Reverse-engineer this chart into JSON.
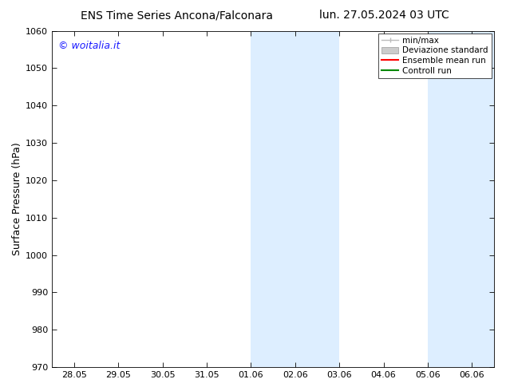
{
  "title_left": "ENS Time Series Ancona/Falconara",
  "title_right": "lun. 27.05.2024 03 UTC",
  "ylabel": "Surface Pressure (hPa)",
  "ylim": [
    970,
    1060
  ],
  "yticks": [
    970,
    980,
    990,
    1000,
    1010,
    1020,
    1030,
    1040,
    1050,
    1060
  ],
  "xtick_labels": [
    "28.05",
    "29.05",
    "30.05",
    "31.05",
    "01.06",
    "02.06",
    "03.06",
    "04.06",
    "05.06",
    "06.06"
  ],
  "watermark": "© woitalia.it",
  "watermark_color": "#1a1aff",
  "bg_color": "#ffffff",
  "plot_bg_color": "#ffffff",
  "shade_regions": [
    {
      "xstart": 4.0,
      "xend": 6.0
    },
    {
      "xstart": 8.0,
      "xend": 10.0
    }
  ],
  "shade_color": "#ddeeff",
  "legend_items": [
    {
      "label": "min/max",
      "color": "#bbbbbb",
      "lw": 1.0,
      "style": "minmax"
    },
    {
      "label": "Deviazione standard",
      "color": "#cccccc",
      "lw": 5,
      "style": "band"
    },
    {
      "label": "Ensemble mean run",
      "color": "#ff0000",
      "lw": 1.5,
      "style": "line"
    },
    {
      "label": "Controll run",
      "color": "#008800",
      "lw": 1.5,
      "style": "line"
    }
  ],
  "font_size_title": 10,
  "font_size_axis": 9,
  "font_size_tick": 8,
  "font_size_legend": 7.5,
  "font_size_watermark": 9
}
